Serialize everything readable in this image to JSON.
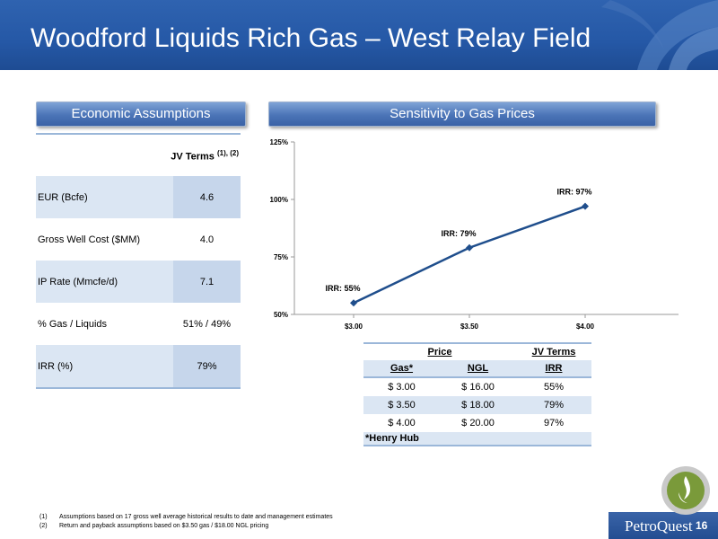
{
  "header": {
    "title": "Woodford Liquids Rich Gas – West Relay Field"
  },
  "sections": {
    "economic": "Economic Assumptions",
    "sensitivity": "Sensitivity to Gas Prices"
  },
  "econ_table": {
    "header": "JV Terms",
    "header_sup": "(1), (2)",
    "rows": [
      {
        "label": "EUR (Bcfe)",
        "value": "4.6"
      },
      {
        "label": "Gross Well Cost ($MM)",
        "value": "4.0"
      },
      {
        "label": "IP Rate (Mmcfe/d)",
        "value": "7.1"
      },
      {
        "label": "% Gas / Liquids",
        "value": "51% / 49%"
      },
      {
        "label": "IRR (%)",
        "value": "79%"
      }
    ]
  },
  "chart_data": {
    "type": "line",
    "categories": [
      "$3.00",
      "$3.50",
      "$4.00"
    ],
    "series": [
      {
        "values": [
          55,
          79,
          97
        ]
      }
    ],
    "data_labels": [
      "IRR: 55%",
      "IRR: 79%",
      "IRR: 97%"
    ],
    "y_ticks": [
      "50%",
      "75%",
      "100%",
      "125%"
    ],
    "ylim": [
      50,
      125
    ],
    "line_color": "#1f4e8c",
    "grid": false
  },
  "sens_table": {
    "group_price": "Price",
    "group_jv": "JV Terms",
    "cols": [
      "Gas*",
      "NGL",
      "IRR"
    ],
    "rows": [
      [
        "$ 3.00",
        "$ 16.00",
        "55%"
      ],
      [
        "$ 3.50",
        "$ 18.00",
        "79%"
      ],
      [
        "$ 4.00",
        "$ 20.00",
        "97%"
      ]
    ],
    "note": "*Henry Hub"
  },
  "footnotes": [
    {
      "num": "(1)",
      "text": "Assumptions based on 17 gross well average historical results to date and management estimates"
    },
    {
      "num": "(2)",
      "text": "Return and payback assumptions based on $3.50 gas / $18.00 NGL pricing"
    }
  ],
  "footer": {
    "logo": "PetroQuest",
    "page": "16"
  }
}
